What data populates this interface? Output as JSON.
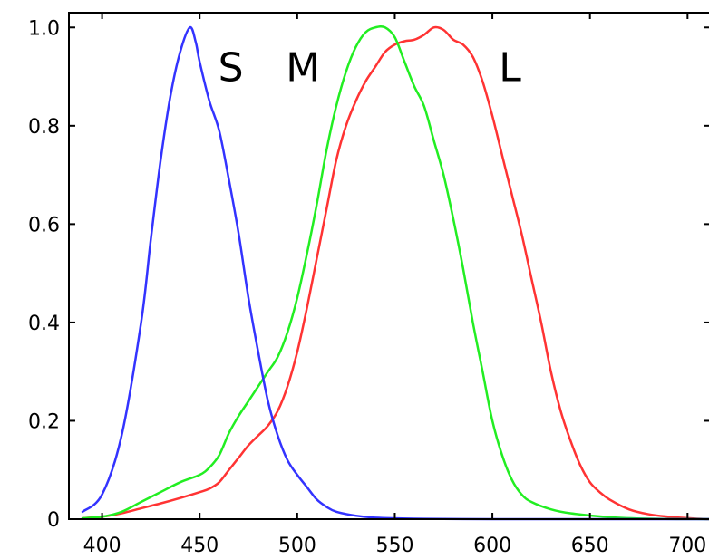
{
  "chart_data": {
    "type": "line",
    "title": "",
    "xlabel": "",
    "ylabel": "",
    "xlim": [
      383,
      711
    ],
    "ylim": [
      0,
      1.03
    ],
    "grid": false,
    "legend": "none",
    "x_ticks": [
      "400",
      "450",
      "500",
      "550",
      "600",
      "650",
      "700"
    ],
    "y_ticks": [
      "0",
      "0.2",
      "0.4",
      "0.6",
      "0.8",
      "1.0"
    ],
    "annotations": [
      {
        "text": "S",
        "x": 466,
        "y": 0.92
      },
      {
        "text": "M",
        "x": 503,
        "y": 0.92
      },
      {
        "text": "L",
        "x": 609,
        "y": 0.92
      }
    ],
    "series": [
      {
        "label": "S",
        "color": "#3333ff",
        "points": [
          [
            390,
            0.015
          ],
          [
            400,
            0.05
          ],
          [
            410,
            0.17
          ],
          [
            420,
            0.4
          ],
          [
            425,
            0.57
          ],
          [
            430,
            0.73
          ],
          [
            435,
            0.86
          ],
          [
            440,
            0.95
          ],
          [
            445,
            1.0
          ],
          [
            448,
            0.97
          ],
          [
            450,
            0.93
          ],
          [
            455,
            0.85
          ],
          [
            460,
            0.79
          ],
          [
            465,
            0.69
          ],
          [
            470,
            0.58
          ],
          [
            475,
            0.45
          ],
          [
            480,
            0.34
          ],
          [
            485,
            0.24
          ],
          [
            490,
            0.17
          ],
          [
            495,
            0.12
          ],
          [
            500,
            0.09
          ],
          [
            505,
            0.065
          ],
          [
            510,
            0.04
          ],
          [
            515,
            0.025
          ],
          [
            520,
            0.015
          ],
          [
            530,
            0.007
          ],
          [
            540,
            0.003
          ],
          [
            560,
            0.001
          ],
          [
            600,
            0.0
          ],
          [
            711,
            0.0
          ]
        ]
      },
      {
        "label": "M",
        "color": "#22ee22",
        "points": [
          [
            390,
            0.002
          ],
          [
            400,
            0.005
          ],
          [
            410,
            0.015
          ],
          [
            420,
            0.035
          ],
          [
            430,
            0.055
          ],
          [
            440,
            0.075
          ],
          [
            450,
            0.09
          ],
          [
            455,
            0.105
          ],
          [
            460,
            0.13
          ],
          [
            465,
            0.175
          ],
          [
            470,
            0.21
          ],
          [
            475,
            0.24
          ],
          [
            480,
            0.27
          ],
          [
            485,
            0.3
          ],
          [
            490,
            0.33
          ],
          [
            495,
            0.38
          ],
          [
            500,
            0.45
          ],
          [
            505,
            0.54
          ],
          [
            510,
            0.64
          ],
          [
            515,
            0.75
          ],
          [
            520,
            0.84
          ],
          [
            525,
            0.91
          ],
          [
            530,
            0.96
          ],
          [
            535,
            0.99
          ],
          [
            540,
            1.0
          ],
          [
            545,
            1.0
          ],
          [
            550,
            0.98
          ],
          [
            555,
            0.93
          ],
          [
            560,
            0.88
          ],
          [
            565,
            0.84
          ],
          [
            570,
            0.77
          ],
          [
            575,
            0.7
          ],
          [
            580,
            0.61
          ],
          [
            585,
            0.51
          ],
          [
            590,
            0.4
          ],
          [
            595,
            0.3
          ],
          [
            600,
            0.2
          ],
          [
            605,
            0.13
          ],
          [
            610,
            0.08
          ],
          [
            615,
            0.05
          ],
          [
            620,
            0.035
          ],
          [
            630,
            0.02
          ],
          [
            640,
            0.012
          ],
          [
            660,
            0.004
          ],
          [
            680,
            0.001
          ],
          [
            711,
            0.0
          ]
        ]
      },
      {
        "label": "L",
        "color": "#ff3333",
        "points": [
          [
            390,
            0.002
          ],
          [
            400,
            0.005
          ],
          [
            410,
            0.012
          ],
          [
            420,
            0.022
          ],
          [
            430,
            0.032
          ],
          [
            440,
            0.043
          ],
          [
            450,
            0.055
          ],
          [
            455,
            0.062
          ],
          [
            460,
            0.075
          ],
          [
            465,
            0.1
          ],
          [
            470,
            0.125
          ],
          [
            475,
            0.15
          ],
          [
            480,
            0.17
          ],
          [
            485,
            0.19
          ],
          [
            490,
            0.22
          ],
          [
            495,
            0.27
          ],
          [
            500,
            0.34
          ],
          [
            505,
            0.43
          ],
          [
            510,
            0.53
          ],
          [
            515,
            0.63
          ],
          [
            520,
            0.73
          ],
          [
            525,
            0.8
          ],
          [
            530,
            0.85
          ],
          [
            535,
            0.89
          ],
          [
            540,
            0.92
          ],
          [
            545,
            0.95
          ],
          [
            550,
            0.965
          ],
          [
            555,
            0.972
          ],
          [
            560,
            0.975
          ],
          [
            565,
            0.985
          ],
          [
            570,
            1.0
          ],
          [
            575,
            0.995
          ],
          [
            580,
            0.975
          ],
          [
            585,
            0.965
          ],
          [
            590,
            0.94
          ],
          [
            595,
            0.89
          ],
          [
            600,
            0.82
          ],
          [
            605,
            0.74
          ],
          [
            610,
            0.66
          ],
          [
            615,
            0.58
          ],
          [
            620,
            0.49
          ],
          [
            625,
            0.4
          ],
          [
            630,
            0.3
          ],
          [
            635,
            0.22
          ],
          [
            640,
            0.16
          ],
          [
            645,
            0.11
          ],
          [
            650,
            0.075
          ],
          [
            655,
            0.055
          ],
          [
            660,
            0.04
          ],
          [
            670,
            0.02
          ],
          [
            680,
            0.01
          ],
          [
            690,
            0.005
          ],
          [
            700,
            0.002
          ],
          [
            711,
            0.0
          ]
        ]
      }
    ]
  }
}
